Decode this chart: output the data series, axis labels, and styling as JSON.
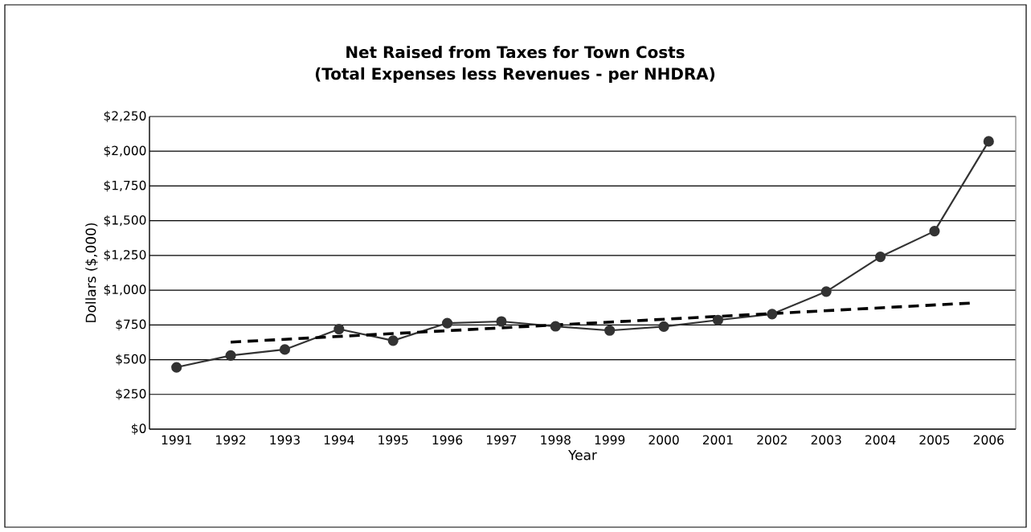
{
  "chart_data": {
    "type": "line",
    "title": "Net Raised from Taxes for Town Costs\n(Total Expenses less Revenues - per NHDRA)",
    "xlabel": "Year",
    "ylabel": "Dollars ($,000)",
    "x": [
      1991,
      1992,
      1993,
      1994,
      1995,
      1996,
      1997,
      1998,
      1999,
      2000,
      2001,
      2002,
      2003,
      2004,
      2005,
      2006
    ],
    "series": [
      {
        "color": "#333333",
        "marker": "circle",
        "line_style": "solid",
        "values": [
          445,
          530,
          573,
          720,
          637,
          763,
          775,
          740,
          710,
          738,
          785,
          828,
          990,
          1240,
          1425,
          2071
        ]
      },
      {
        "type": "line",
        "color": "#000000",
        "marker": "none",
        "line_style": "dashed",
        "x": [
          1992,
          2005.65
        ],
        "values": [
          626,
          907
        ]
      }
    ],
    "xlim": [
      1990.5,
      2006.5
    ],
    "xticks": [
      1991,
      1992,
      1993,
      1994,
      1995,
      1996,
      1997,
      1998,
      1999,
      2000,
      2001,
      2002,
      2003,
      2004,
      2005,
      2006
    ],
    "ylim": [
      0,
      2250
    ],
    "yticks": [
      {
        "value": 0,
        "label": "$0"
      },
      {
        "value": 250,
        "label": "$250"
      },
      {
        "value": 500,
        "label": "$500"
      },
      {
        "value": 750,
        "label": "$750"
      },
      {
        "value": 1000,
        "label": "$1,000"
      },
      {
        "value": 1250,
        "label": "$1,250"
      },
      {
        "value": 1500,
        "label": "$1,500"
      },
      {
        "value": 1750,
        "label": "$1,750"
      },
      {
        "value": 2000,
        "label": "$2,000"
      },
      {
        "value": 2250,
        "label": "$2,250"
      }
    ],
    "grid": "y"
  }
}
